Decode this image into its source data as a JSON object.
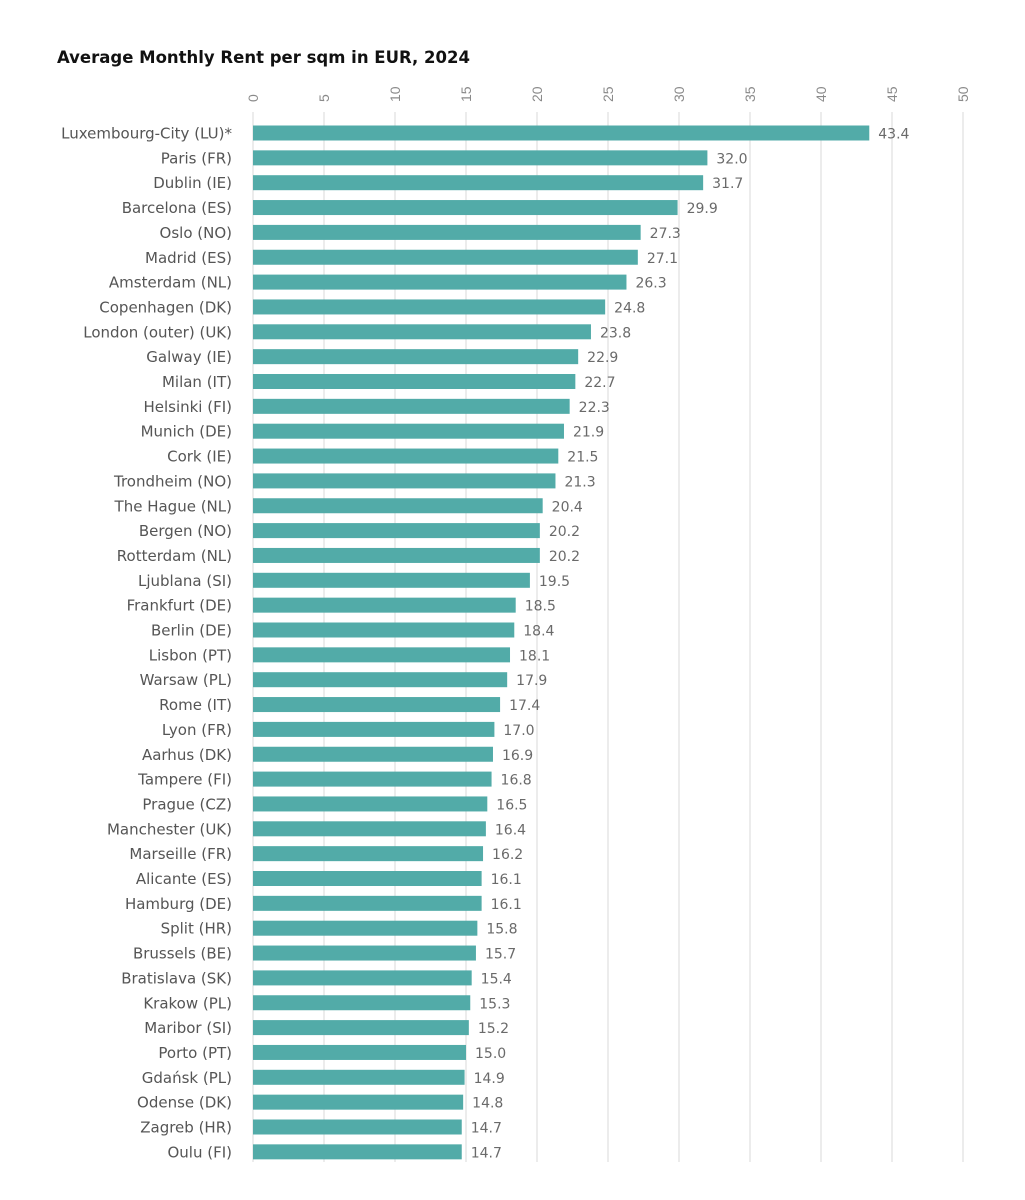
{
  "chart_data": {
    "type": "bar",
    "orientation": "horizontal",
    "title": "Average Monthly Rent per sqm in EUR, 2024",
    "xlabel": "",
    "ylabel": "",
    "xlim": [
      0,
      50
    ],
    "ticks": [
      "0",
      "5",
      "10",
      "15",
      "20",
      "25",
      "30",
      "35",
      "40",
      "45",
      "50"
    ],
    "grid": true,
    "bar_color": "#52aba8",
    "categories": [
      "Luxembourg-City (LU)*",
      "Paris (FR)",
      "Dublin (IE)",
      "Barcelona (ES)",
      "Oslo (NO)",
      "Madrid (ES)",
      "Amsterdam (NL)",
      "Copenhagen (DK)",
      "London (outer) (UK)",
      "Galway (IE)",
      "Milan (IT)",
      "Helsinki (FI)",
      "Munich (DE)",
      "Cork (IE)",
      "Trondheim (NO)",
      "The Hague (NL)",
      "Bergen (NO)",
      "Rotterdam (NL)",
      "Ljublana (SI)",
      "Frankfurt (DE)",
      "Berlin (DE)",
      "Lisbon (PT)",
      "Warsaw (PL)",
      "Rome (IT)",
      "Lyon (FR)",
      "Aarhus (DK)",
      "Tampere (FI)",
      "Prague (CZ)",
      "Manchester (UK)",
      "Marseille (FR)",
      "Alicante (ES)",
      "Hamburg (DE)",
      "Split (HR)",
      "Brussels (BE)",
      "Bratislava (SK)",
      "Krakow (PL)",
      "Maribor (SI)",
      "Porto (PT)",
      "Gdańsk (PL)",
      "Odense (DK)",
      "Zagreb (HR)",
      "Oulu (FI)"
    ],
    "values": [
      43.4,
      32.0,
      31.7,
      29.9,
      27.3,
      27.1,
      26.3,
      24.8,
      23.8,
      22.9,
      22.7,
      22.3,
      21.9,
      21.5,
      21.3,
      20.4,
      20.2,
      20.2,
      19.5,
      18.5,
      18.4,
      18.1,
      17.9,
      17.4,
      17.0,
      16.9,
      16.8,
      16.5,
      16.4,
      16.2,
      16.1,
      16.1,
      15.8,
      15.7,
      15.4,
      15.3,
      15.2,
      15.0,
      14.9,
      14.8,
      14.7,
      14.7
    ],
    "value_labels": [
      "43.4",
      "32.0",
      "31.7",
      "29.9",
      "27.3",
      "27.1",
      "26.3",
      "24.8",
      "23.8",
      "22.9",
      "22.7",
      "22.3",
      "21.9",
      "21.5",
      "21.3",
      "20.4",
      "20.2",
      "20.2",
      "19.5",
      "18.5",
      "18.4",
      "18.1",
      "17.9",
      "17.4",
      "17.0",
      "16.9",
      "16.8",
      "16.5",
      "16.4",
      "16.2",
      "16.1",
      "16.1",
      "15.8",
      "15.7",
      "15.4",
      "15.3",
      "15.2",
      "15.0",
      "14.9",
      "14.8",
      "14.7",
      "14.7"
    ]
  }
}
